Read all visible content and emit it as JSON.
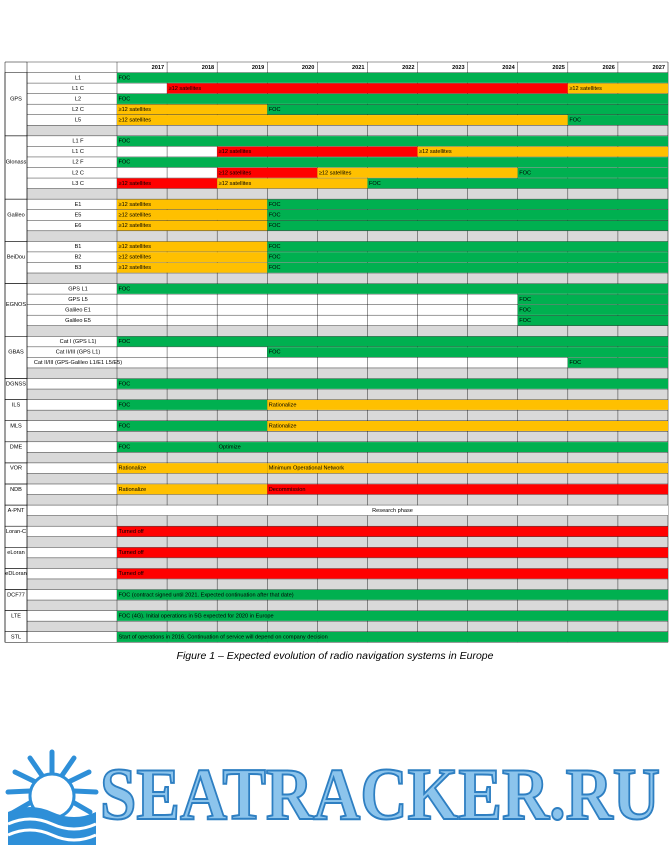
{
  "table": {
    "years": [
      2017,
      2018,
      2019,
      2020,
      2021,
      2022,
      2023,
      2024,
      2025,
      2026,
      2027
    ],
    "groups": [
      {
        "system": "GPS",
        "rows": [
          {
            "signal": "L1",
            "segments": [
              {
                "from": 2017,
                "to": 2027,
                "label": "FOC",
                "color": "#00b050"
              }
            ]
          },
          {
            "signal": "L1 C",
            "segments": [
              {
                "from": 2018,
                "to": 2025,
                "label": "≥12 satellites",
                "color": "#ff0000"
              },
              {
                "from": 2026,
                "to": 2027,
                "label": "≥12 satellites",
                "color": "#ffc000"
              }
            ]
          },
          {
            "signal": "L2",
            "segments": [
              {
                "from": 2017,
                "to": 2027,
                "label": "FOC",
                "color": "#00b050"
              }
            ]
          },
          {
            "signal": "L2 C",
            "segments": [
              {
                "from": 2017,
                "to": 2019,
                "label": "≥12 satellites",
                "color": "#ffc000"
              },
              {
                "from": 2020,
                "to": 2027,
                "label": "FOC",
                "color": "#00b050"
              }
            ]
          },
          {
            "signal": "L5",
            "segments": [
              {
                "from": 2017,
                "to": 2025,
                "label": "≥12 satellites",
                "color": "#ffc000"
              },
              {
                "from": 2026,
                "to": 2027,
                "label": "FOC",
                "color": "#00b050"
              }
            ]
          }
        ]
      },
      {
        "system": "Glonass",
        "rows": [
          {
            "signal": "L1 F",
            "segments": [
              {
                "from": 2017,
                "to": 2027,
                "label": "FOC",
                "color": "#00b050"
              }
            ]
          },
          {
            "signal": "L1 C",
            "segments": [
              {
                "from": 2019,
                "to": 2022,
                "label": "≥12 satellites",
                "color": "#ff0000"
              },
              {
                "from": 2023,
                "to": 2027,
                "label": "≥12 satellites",
                "color": "#ffc000"
              }
            ]
          },
          {
            "signal": "L2 F",
            "segments": [
              {
                "from": 2017,
                "to": 2027,
                "label": "FOC",
                "color": "#00b050"
              }
            ]
          },
          {
            "signal": "L2 C",
            "segments": [
              {
                "from": 2019,
                "to": 2020,
                "label": "≥12 satellites",
                "color": "#ff0000"
              },
              {
                "from": 2021,
                "to": 2024,
                "label": "≥12 satellites",
                "color": "#ffc000"
              },
              {
                "from": 2025,
                "to": 2027,
                "label": "FOC",
                "color": "#00b050"
              }
            ]
          },
          {
            "signal": "L3 C",
            "segments": [
              {
                "from": 2017,
                "to": 2018,
                "label": "≥12 satellites",
                "color": "#ff0000"
              },
              {
                "from": 2019,
                "to": 2021,
                "label": "≥12 satellites",
                "color": "#ffc000"
              },
              {
                "from": 2022,
                "to": 2027,
                "label": "FOC",
                "color": "#00b050"
              }
            ]
          }
        ]
      },
      {
        "system": "Galileo",
        "rows": [
          {
            "signal": "E1",
            "segments": [
              {
                "from": 2017,
                "to": 2019,
                "label": "≥12 satellites",
                "color": "#ffc000"
              },
              {
                "from": 2020,
                "to": 2027,
                "label": "FOC",
                "color": "#00b050"
              }
            ]
          },
          {
            "signal": "E5",
            "segments": [
              {
                "from": 2017,
                "to": 2019,
                "label": "≥12 satellites",
                "color": "#ffc000"
              },
              {
                "from": 2020,
                "to": 2027,
                "label": "FOC",
                "color": "#00b050"
              }
            ]
          },
          {
            "signal": "E6",
            "segments": [
              {
                "from": 2017,
                "to": 2019,
                "label": "≥12 satellites",
                "color": "#ffc000"
              },
              {
                "from": 2020,
                "to": 2027,
                "label": "FOC",
                "color": "#00b050"
              }
            ]
          }
        ]
      },
      {
        "system": "BeiDou",
        "rows": [
          {
            "signal": "B1",
            "segments": [
              {
                "from": 2017,
                "to": 2019,
                "label": "≥12 satellites",
                "color": "#ffc000"
              },
              {
                "from": 2020,
                "to": 2027,
                "label": "FOC",
                "color": "#00b050"
              }
            ]
          },
          {
            "signal": "B2",
            "segments": [
              {
                "from": 2017,
                "to": 2019,
                "label": "≥12 satellites",
                "color": "#ffc000"
              },
              {
                "from": 2020,
                "to": 2027,
                "label": "FOC",
                "color": "#00b050"
              }
            ]
          },
          {
            "signal": "B3",
            "segments": [
              {
                "from": 2017,
                "to": 2019,
                "label": "≥12 satellites",
                "color": "#ffc000"
              },
              {
                "from": 2020,
                "to": 2027,
                "label": "FOC",
                "color": "#00b050"
              }
            ]
          }
        ]
      },
      {
        "system": "EGNOS",
        "rows": [
          {
            "signal": "GPS L1",
            "segments": [
              {
                "from": 2017,
                "to": 2027,
                "label": "FOC",
                "color": "#00b050"
              }
            ]
          },
          {
            "signal": "GPS L5",
            "segments": [
              {
                "from": 2025,
                "to": 2027,
                "label": "FOC",
                "color": "#00b050"
              }
            ]
          },
          {
            "signal": "Galileo E1",
            "segments": [
              {
                "from": 2025,
                "to": 2027,
                "label": "FOC",
                "color": "#00b050"
              }
            ]
          },
          {
            "signal": "Galileo E5",
            "segments": [
              {
                "from": 2025,
                "to": 2027,
                "label": "FOC",
                "color": "#00b050"
              }
            ]
          }
        ]
      },
      {
        "system": "GBAS",
        "rows": [
          {
            "signal": "Cat I (GPS L1)",
            "segments": [
              {
                "from": 2017,
                "to": 2027,
                "label": "FOC",
                "color": "#00b050"
              }
            ]
          },
          {
            "signal": "Cat II/III (GPS L1)",
            "segments": [
              {
                "from": 2020,
                "to": 2027,
                "label": "FOC",
                "color": "#00b050"
              }
            ]
          },
          {
            "signal": "Cat II/III (GPS-Galileo L1/E1 L5/E5)",
            "segments": [
              {
                "from": 2026,
                "to": 2027,
                "label": "FOC",
                "color": "#00b050"
              }
            ]
          }
        ]
      },
      {
        "system": "DGNSS",
        "rows": [
          {
            "segments": [
              {
                "from": 2017,
                "to": 2027,
                "label": "FOC",
                "color": "#00b050"
              }
            ]
          }
        ]
      },
      {
        "system": "ILS",
        "rows": [
          {
            "segments": [
              {
                "from": 2017,
                "to": 2019,
                "label": "FOC",
                "color": "#00b050"
              },
              {
                "from": 2020,
                "to": 2027,
                "label": "Rationalize",
                "color": "#ffc000"
              }
            ]
          }
        ]
      },
      {
        "system": "MLS",
        "rows": [
          {
            "segments": [
              {
                "from": 2017,
                "to": 2019,
                "label": "FOC",
                "color": "#00b050"
              },
              {
                "from": 2020,
                "to": 2027,
                "label": "Rationalize",
                "color": "#ffc000"
              }
            ]
          }
        ]
      },
      {
        "system": "DME",
        "rows": [
          {
            "segments": [
              {
                "from": 2017,
                "to": 2018,
                "label": "FOC",
                "color": "#00b050"
              },
              {
                "from": 2019,
                "to": 2027,
                "label": "Optimize",
                "color": "#00b050"
              }
            ]
          }
        ]
      },
      {
        "system": "VOR",
        "rows": [
          {
            "segments": [
              {
                "from": 2017,
                "to": 2019,
                "label": "Rationalize",
                "color": "#ffc000"
              },
              {
                "from": 2020,
                "to": 2027,
                "label": "Minimum Operational Network",
                "color": "#ffc000"
              }
            ]
          }
        ]
      },
      {
        "system": "NDB",
        "rows": [
          {
            "segments": [
              {
                "from": 2017,
                "to": 2019,
                "label": "Rationalize",
                "color": "#ffc000"
              },
              {
                "from": 2020,
                "to": 2027,
                "label": "Decommission",
                "color": "#ff0000"
              }
            ]
          }
        ]
      },
      {
        "system": "A-PNT",
        "rows": [
          {
            "segments": [
              {
                "from": 2017,
                "to": 2027,
                "label": "Research phase",
                "color": "#ffffff",
                "label_position": "center"
              }
            ]
          }
        ]
      },
      {
        "system": "Loran-C",
        "rows": [
          {
            "segments": [
              {
                "from": 2017,
                "to": 2027,
                "label": "Turned off",
                "color": "#ff0000"
              }
            ]
          }
        ]
      },
      {
        "system": "eLoran",
        "rows": [
          {
            "segments": [
              {
                "from": 2017,
                "to": 2027,
                "label": "Turned off",
                "color": "#ff0000"
              }
            ]
          }
        ]
      },
      {
        "system": "eDLoran",
        "rows": [
          {
            "segments": [
              {
                "from": 2017,
                "to": 2027,
                "label": "Turned off",
                "color": "#ff0000"
              }
            ]
          }
        ]
      },
      {
        "system": "DCF77",
        "rows": [
          {
            "segments": [
              {
                "from": 2017,
                "to": 2027,
                "label": "FOC (contract signed until 2021. Expected continuation after that date)",
                "color": "#00b050"
              }
            ]
          }
        ]
      },
      {
        "system": "LTE",
        "rows": [
          {
            "segments": [
              {
                "from": 2017,
                "to": 2027,
                "label": "FOC (4G). Initial operations in 5G expected for 2020 in Europe",
                "color": "#00b050"
              }
            ]
          }
        ]
      },
      {
        "system": "STL",
        "rows": [
          {
            "segments": [
              {
                "from": 2017,
                "to": 2027,
                "label": "Start of operations in 2016. Continuation of service will depend on company decision",
                "color": "#00b050"
              }
            ]
          }
        ]
      }
    ]
  },
  "caption": "Figure 1 – Expected evolution of radio navigation systems in Europe",
  "watermark": "SEATRACKER.RU"
}
